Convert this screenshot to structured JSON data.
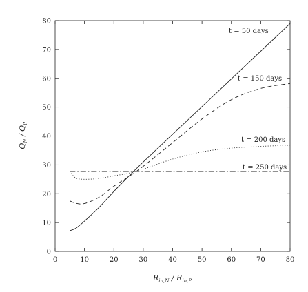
{
  "chart_data": {
    "type": "line",
    "xlabel": "R_in,N / R_in,P",
    "ylabel": "Q_N / Q_P",
    "xlim": [
      0,
      80
    ],
    "ylim": [
      0,
      80
    ],
    "xticks": [
      0,
      10,
      20,
      30,
      40,
      50,
      60,
      70,
      80
    ],
    "yticks": [
      0,
      10,
      20,
      30,
      40,
      50,
      60,
      70,
      80
    ],
    "grid": false,
    "legend": "none (curves labelled inline, upper right)",
    "series": [
      {
        "name": "t = 50 days",
        "style": "solid",
        "x": [
          5,
          7,
          10,
          15,
          20,
          25,
          30,
          40,
          50,
          60,
          70,
          80
        ],
        "y": [
          7.2,
          8,
          10.5,
          15.3,
          20.8,
          26,
          31,
          40.6,
          50.2,
          59.8,
          69.4,
          79
        ]
      },
      {
        "name": "t = 150 days",
        "style": "dashed",
        "x": [
          5,
          7,
          10,
          15,
          20,
          25,
          30,
          40,
          50,
          60,
          70,
          80
        ],
        "y": [
          17.5,
          16.7,
          16.6,
          18.8,
          22.6,
          25.9,
          29.5,
          37.7,
          45.9,
          52.6,
          56.5,
          58.2
        ]
      },
      {
        "name": "t = 200 days",
        "style": "dotted",
        "x": [
          5,
          7,
          10,
          15,
          20,
          25,
          30,
          40,
          50,
          60,
          70,
          80
        ],
        "y": [
          27.7,
          25.5,
          25,
          25.3,
          26.2,
          27.1,
          28.5,
          32,
          34.5,
          35.8,
          36.4,
          36.8
        ]
      },
      {
        "name": "t = 250 days",
        "style": "dash-dot",
        "x": [
          5,
          80
        ],
        "y": [
          27.7,
          27.7
        ]
      }
    ]
  }
}
